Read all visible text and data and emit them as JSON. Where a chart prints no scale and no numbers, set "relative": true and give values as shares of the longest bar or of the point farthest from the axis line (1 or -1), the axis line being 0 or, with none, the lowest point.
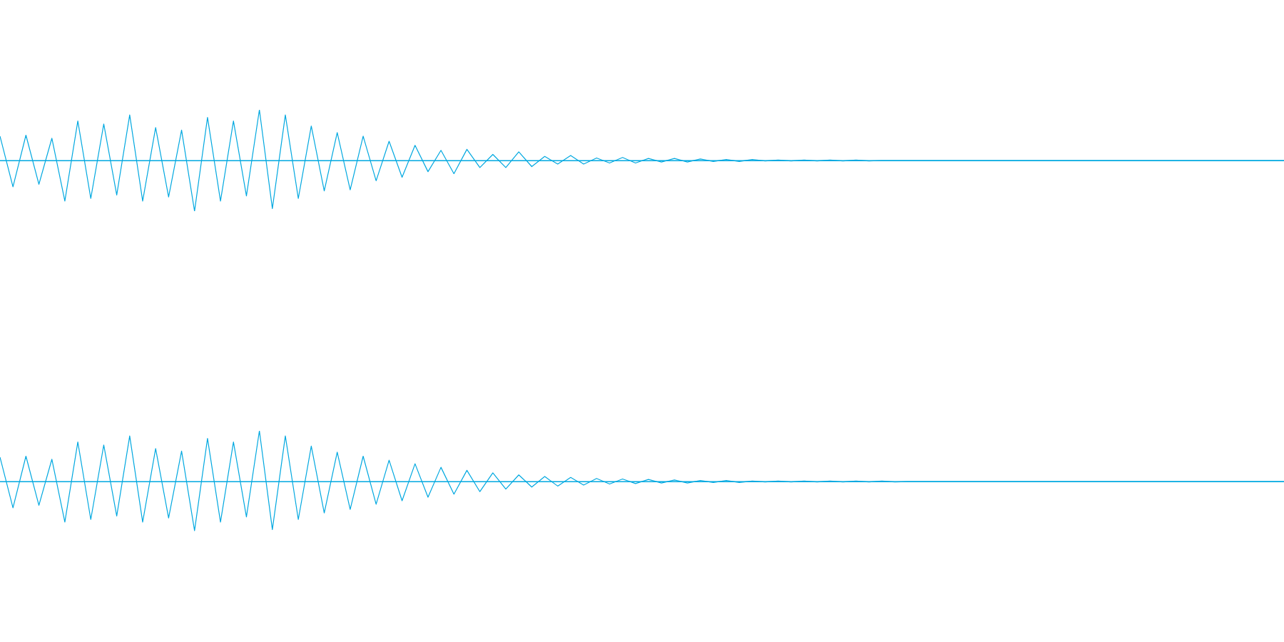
{
  "chart_data": [
    {
      "type": "line",
      "relative": true,
      "marker": "none",
      "ref_lines": [
        {
          "axis": "y",
          "value": 0,
          "color": "#00a8e0"
        }
      ],
      "categories": [
        null,
        null,
        null,
        null,
        null,
        null,
        null,
        null,
        null,
        null,
        null,
        null,
        null,
        null,
        null,
        null,
        null,
        null,
        null,
        null,
        null,
        null,
        null,
        null,
        null,
        null,
        null,
        null,
        null,
        null,
        null,
        null,
        null,
        null,
        null,
        null,
        null,
        null,
        null,
        null,
        null,
        null,
        null,
        null,
        null,
        null,
        null,
        null,
        null,
        null,
        null,
        null,
        null,
        null,
        null,
        null,
        null,
        null,
        null,
        null,
        null,
        null,
        null,
        null,
        null,
        null,
        null,
        null,
        null,
        null,
        null,
        null,
        null,
        null,
        null,
        null,
        null,
        null,
        null,
        null,
        null,
        null,
        null,
        null,
        null,
        null,
        null,
        null,
        null,
        null,
        null,
        null,
        null,
        null,
        null,
        null,
        null,
        null,
        null,
        null
      ],
      "series": [
        {
          "color": "#00a8e0",
          "values": [
            0.48,
            -0.52,
            0.5,
            -0.47,
            0.44,
            -0.8,
            0.78,
            -0.75,
            0.72,
            -0.68,
            0.9,
            -0.8,
            0.65,
            -0.72,
            0.6,
            -1,
            0.85,
            -0.8,
            0.78,
            -0.7,
            1,
            -0.95,
            0.9,
            -0.75,
            0.68,
            -0.6,
            0.55,
            -0.58,
            0.48,
            -0.4,
            0.38,
            -0.33,
            0.3,
            -0.22,
            0.2,
            -0.26,
            0.22,
            -0.14,
            0.12,
            -0.14,
            0.17,
            -0.12,
            0.08,
            -0.07,
            0.1,
            -0.07,
            0.05,
            -0.05,
            0.06,
            -0.05,
            0.04,
            -0.03,
            0.04,
            -0.03,
            0.03,
            -0.02,
            0.02,
            -0.02,
            0.02,
            -0.01,
            0.01,
            -0.01,
            0.01,
            -0.01,
            0.01,
            -0.01,
            0.01,
            -0.01,
            0,
            0,
            0,
            0,
            0,
            0,
            0,
            0,
            0,
            0,
            0,
            0,
            0,
            0,
            0,
            0,
            0,
            0,
            0,
            0,
            0,
            0,
            0,
            0,
            0,
            0,
            0,
            0,
            0,
            0,
            0,
            0
          ]
        }
      ]
    },
    {
      "type": "line",
      "relative": true,
      "marker": "none",
      "ref_lines": [
        {
          "axis": "y",
          "value": 0,
          "color": "#00a8e0"
        }
      ],
      "categories": [
        null,
        null,
        null,
        null,
        null,
        null,
        null,
        null,
        null,
        null,
        null,
        null,
        null,
        null,
        null,
        null,
        null,
        null,
        null,
        null,
        null,
        null,
        null,
        null,
        null,
        null,
        null,
        null,
        null,
        null,
        null,
        null,
        null,
        null,
        null,
        null,
        null,
        null,
        null,
        null,
        null,
        null,
        null,
        null,
        null,
        null,
        null,
        null,
        null,
        null,
        null,
        null,
        null,
        null,
        null,
        null,
        null,
        null,
        null,
        null,
        null,
        null,
        null,
        null,
        null,
        null,
        null,
        null,
        null,
        null,
        null,
        null,
        null,
        null,
        null,
        null,
        null,
        null,
        null,
        null,
        null,
        null,
        null,
        null,
        null,
        null,
        null,
        null,
        null,
        null,
        null,
        null,
        null,
        null,
        null,
        null,
        null,
        null,
        null,
        null
      ],
      "series": [
        {
          "color": "#00a8e0",
          "values": [
            0.48,
            -0.52,
            0.5,
            -0.47,
            0.44,
            -0.8,
            0.78,
            -0.75,
            0.72,
            -0.68,
            0.9,
            -0.8,
            0.65,
            -0.72,
            0.6,
            -0.97,
            0.85,
            -0.8,
            0.78,
            -0.7,
            1,
            -0.95,
            0.9,
            -0.75,
            0.7,
            -0.62,
            0.58,
            -0.55,
            0.5,
            -0.45,
            0.42,
            -0.38,
            0.35,
            -0.31,
            0.28,
            -0.25,
            0.22,
            -0.2,
            0.17,
            -0.15,
            0.13,
            -0.11,
            0.1,
            -0.09,
            0.08,
            -0.07,
            0.06,
            -0.05,
            0.05,
            -0.04,
            0.04,
            -0.03,
            0.03,
            -0.03,
            0.02,
            -0.02,
            0.02,
            -0.02,
            0.01,
            -0.01,
            0.01,
            -0.01,
            0.01,
            -0.01,
            0.01,
            -0.01,
            0.01,
            -0.01,
            0.01,
            -0.01,
            0,
            0,
            0,
            0,
            0,
            0,
            0,
            0,
            0,
            0,
            0,
            0,
            0,
            0,
            0,
            0,
            0,
            0,
            0,
            0,
            0,
            0,
            0,
            0,
            0,
            0,
            0,
            0,
            0,
            0
          ]
        }
      ]
    }
  ]
}
